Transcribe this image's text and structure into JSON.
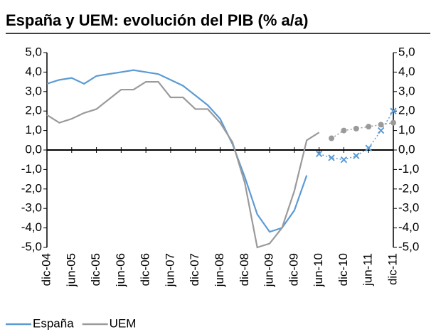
{
  "chart_data": {
    "type": "line",
    "title": "España y UEM: evolución del PIB (% a/a)",
    "categories": [
      "dic-04",
      null,
      "jun-05",
      null,
      "dic-05",
      null,
      "jun-06",
      null,
      "dic-06",
      null,
      "jun-07",
      null,
      "dic-07",
      null,
      "jun-08",
      null,
      "dic-08",
      null,
      "jun-09",
      null,
      "dic-09",
      null,
      "jun-10",
      null,
      "dic-10",
      null,
      "jun-11",
      null,
      "dic-11"
    ],
    "series": [
      {
        "name": "España",
        "color": "#5b9bd5",
        "values": [
          3.4,
          3.6,
          3.7,
          3.4,
          3.8,
          3.9,
          4.0,
          4.1,
          4.0,
          3.9,
          3.6,
          3.3,
          2.8,
          2.3,
          1.6,
          0.3,
          -1.4,
          -3.3,
          -4.2,
          -4.0,
          -3.1,
          -1.3,
          null,
          null,
          null,
          null,
          null,
          null,
          null
        ],
        "forecast": [
          null,
          null,
          null,
          null,
          null,
          null,
          null,
          null,
          null,
          null,
          null,
          null,
          null,
          null,
          null,
          null,
          null,
          null,
          null,
          null,
          null,
          null,
          -0.2,
          -0.4,
          -0.5,
          -0.3,
          0.1,
          1.0,
          2.0
        ]
      },
      {
        "name": "UEM",
        "color": "#9a9a9a",
        "values": [
          1.8,
          1.4,
          1.6,
          1.9,
          2.1,
          2.6,
          3.1,
          3.1,
          3.5,
          3.5,
          2.7,
          2.7,
          2.1,
          2.1,
          1.4,
          0.4,
          -1.7,
          -5.0,
          -4.8,
          -4.0,
          -2.1,
          0.5,
          0.9,
          null,
          null,
          null,
          null,
          null,
          null
        ],
        "forecast": [
          null,
          null,
          null,
          null,
          null,
          null,
          null,
          null,
          null,
          null,
          null,
          null,
          null,
          null,
          null,
          null,
          null,
          null,
          null,
          null,
          null,
          null,
          null,
          0.6,
          1.0,
          1.1,
          1.2,
          1.3,
          1.4
        ]
      }
    ],
    "ylim": [
      -5,
      5
    ],
    "yticks": [
      {
        "value": 5,
        "label": "5,0"
      },
      {
        "value": 4,
        "label": "4,0"
      },
      {
        "value": 3,
        "label": "3,0"
      },
      {
        "value": 2,
        "label": "2,0"
      },
      {
        "value": 1,
        "label": "1,0"
      },
      {
        "value": 0,
        "label": "0,0"
      },
      {
        "value": -1,
        "label": "-1,0"
      },
      {
        "value": -2,
        "label": "-2,0"
      },
      {
        "value": -3,
        "label": "-3,0"
      },
      {
        "value": -4,
        "label": "-4,0"
      },
      {
        "value": -5,
        "label": "-5,0"
      }
    ],
    "y2lim": [
      -5,
      5
    ],
    "y2ticks": [
      {
        "value": 5,
        "label": "5,0"
      },
      {
        "value": 4,
        "label": "4,0"
      },
      {
        "value": 3,
        "label": "3,0"
      },
      {
        "value": 2,
        "label": "2,0"
      },
      {
        "value": 1,
        "label": "1,0"
      },
      {
        "value": 0,
        "label": "0,0"
      },
      {
        "value": -1,
        "label": "-1,0"
      },
      {
        "value": -2,
        "label": "-2,0"
      },
      {
        "value": -3,
        "label": "-3,0"
      },
      {
        "value": -4,
        "label": "-4,0"
      },
      {
        "value": -5,
        "label": "-5,0"
      }
    ],
    "legend": "bottom-left"
  }
}
